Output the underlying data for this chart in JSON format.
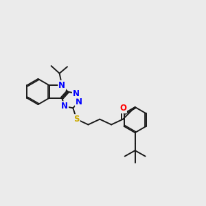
{
  "bg_color": "#ebebeb",
  "atom_colors": {
    "N": "#0000ff",
    "S": "#ccaa00",
    "O": "#ff0000",
    "C": "#000000"
  },
  "bond_color": "#1a1a1a",
  "bond_width": 1.4,
  "font_size_atom": 8.5,
  "fig_width": 3.0,
  "fig_height": 3.0,
  "dpi": 100
}
